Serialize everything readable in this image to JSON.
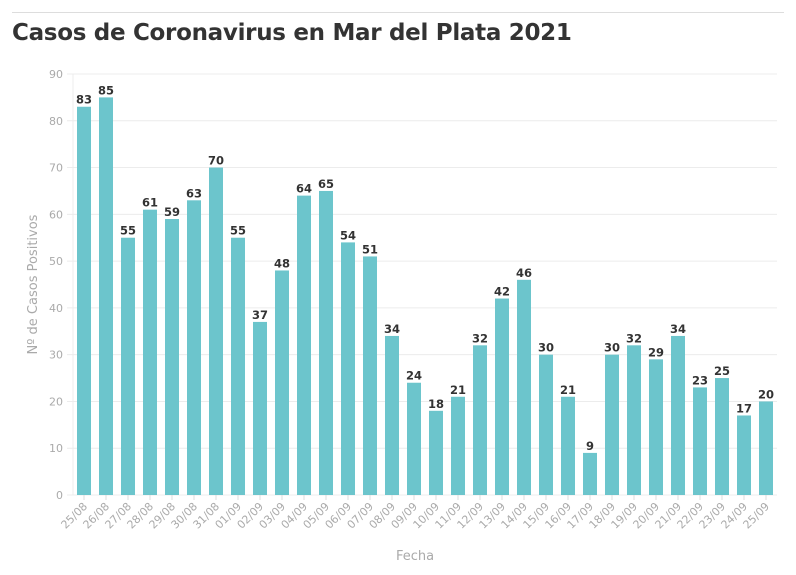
{
  "title": "Casos de Coronavirus en Mar del Plata 2021",
  "chart_data": {
    "type": "bar",
    "title": "Casos de Coronavirus en Mar del Plata 2021",
    "xlabel": "Fecha",
    "ylabel": "Nº de Casos Positivos",
    "ylim": [
      0,
      90
    ],
    "yticks": [
      0,
      10,
      20,
      30,
      40,
      50,
      60,
      70,
      80,
      90
    ],
    "grid": true,
    "bar_color": "#6cc5cc",
    "categories": [
      "25/08",
      "26/08",
      "27/08",
      "28/08",
      "29/08",
      "30/08",
      "31/08",
      "01/09",
      "02/09",
      "03/09",
      "04/09",
      "05/09",
      "06/09",
      "07/09",
      "08/09",
      "09/09",
      "10/09",
      "11/09",
      "12/09",
      "13/09",
      "14/09",
      "15/09",
      "16/09",
      "17/09",
      "18/09",
      "19/09",
      "20/09",
      "21/09",
      "22/09",
      "23/09",
      "24/09",
      "25/09"
    ],
    "values": [
      83,
      85,
      55,
      61,
      59,
      63,
      70,
      55,
      37,
      48,
      64,
      65,
      54,
      51,
      34,
      24,
      18,
      21,
      32,
      42,
      46,
      30,
      21,
      9,
      30,
      32,
      29,
      34,
      23,
      25,
      17,
      20
    ]
  }
}
